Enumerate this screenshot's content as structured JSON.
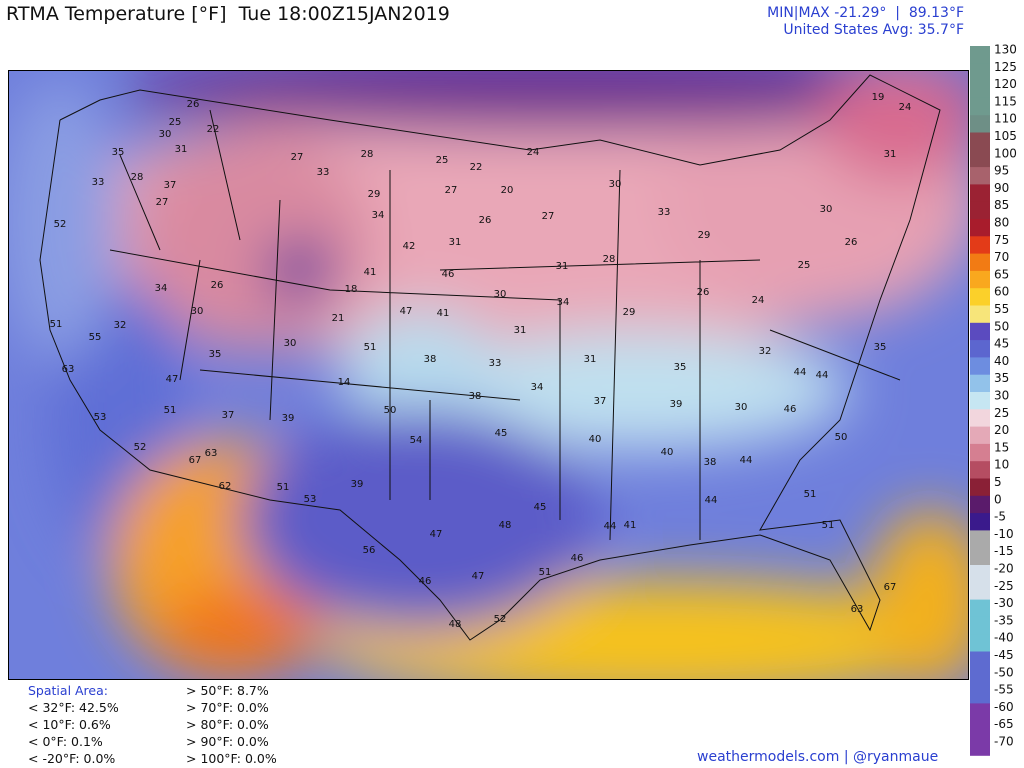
{
  "header": {
    "title": "RTMA Temperature [°F]  Tue 18:00Z15JAN2019",
    "minmax": "MIN|MAX -21.29°  |  89.13°F",
    "average": "United States Avg: 35.7°F"
  },
  "stations": [
    26,
    25,
    30,
    22,
    35,
    31,
    28,
    37,
    33,
    52,
    27,
    27,
    33,
    28,
    25,
    22,
    24,
    29,
    27,
    20,
    34,
    26,
    27,
    30,
    33,
    29,
    28,
    31,
    30,
    34,
    29,
    26,
    24,
    25,
    26,
    19,
    24,
    31,
    30,
    35,
    44,
    46,
    50,
    51,
    51,
    67,
    63,
    44,
    44,
    41,
    46,
    51,
    52,
    48,
    47,
    46,
    56,
    47,
    48,
    45,
    44,
    40,
    38,
    40,
    45,
    54,
    39,
    51,
    53,
    67,
    63,
    62,
    53,
    52,
    51,
    37,
    39,
    50,
    38,
    34,
    37,
    39,
    30,
    44,
    38,
    33,
    31,
    35,
    32,
    51,
    14,
    30,
    35,
    47,
    63,
    55,
    51,
    32,
    30,
    34,
    26,
    21,
    18,
    47,
    41,
    41,
    46,
    42,
    31,
    31
  ],
  "colorbar": {
    "ticks": [
      130,
      125,
      120,
      115,
      110,
      105,
      100,
      95,
      90,
      85,
      80,
      75,
      70,
      65,
      60,
      55,
      50,
      45,
      40,
      35,
      30,
      25,
      20,
      15,
      10,
      5,
      0,
      -5,
      -10,
      -15,
      -20,
      -25,
      -30,
      -35,
      -40,
      -45,
      -50,
      -55,
      -60,
      -65,
      -70
    ]
  },
  "spatial_area": {
    "title": "Spatial Area:",
    "below": [
      "< 32°F: 42.5%",
      "< 10°F: 0.6%",
      "< 0°F: 0.1%",
      "< -20°F: 0.0%"
    ],
    "above": [
      "> 50°F: 8.7%",
      "> 70°F: 0.0%",
      "> 80°F: 0.0%",
      "> 90°F: 0.0%",
      "> 100°F: 0.0%"
    ]
  },
  "credit": "weathermodels.com | @ryanmaue"
}
